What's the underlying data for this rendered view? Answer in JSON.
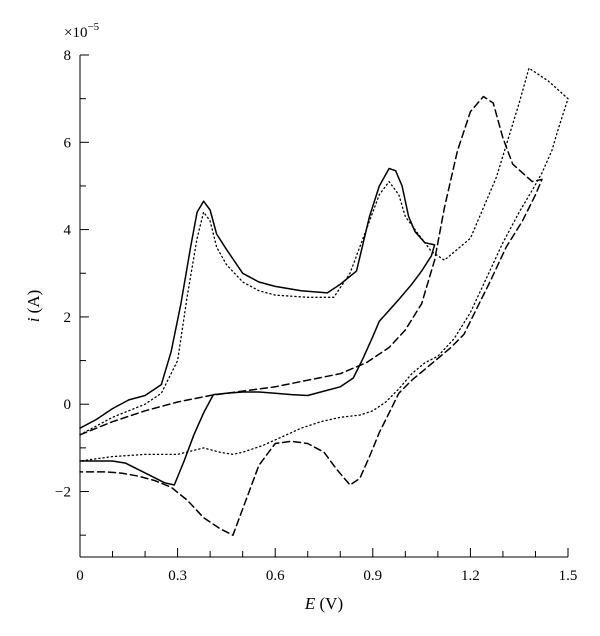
{
  "chart_data": {
    "type": "line",
    "title": "",
    "xlabel_var": "E",
    "xlabel_unit": " (V)",
    "ylabel_var": "i",
    "ylabel_unit": " (A)",
    "y_multiplier_base": "×10",
    "y_multiplier_exp": "−5",
    "xlim": [
      0,
      1.5
    ],
    "ylim": [
      -3.5,
      8
    ],
    "x_ticks": [
      0,
      0.3,
      0.6,
      0.9,
      1.2,
      1.5
    ],
    "x_tick_labels": [
      "0",
      "0.3",
      "0.6",
      "0.9",
      "1.2",
      "1.5"
    ],
    "y_ticks": [
      -2,
      0,
      2,
      4,
      6,
      8
    ],
    "y_tick_labels": [
      "−2",
      "0",
      "2",
      "4",
      "6",
      "8"
    ],
    "grid": false,
    "legend": "none",
    "series": [
      {
        "style": "solid",
        "x": [
          0.0,
          0.05,
          0.1,
          0.15,
          0.2,
          0.25,
          0.28,
          0.31,
          0.34,
          0.36,
          0.38,
          0.4,
          0.42,
          0.45,
          0.5,
          0.55,
          0.6,
          0.68,
          0.76,
          0.8,
          0.85,
          0.89,
          0.92,
          0.95,
          0.97,
          0.99,
          1.01,
          1.03,
          1.06,
          1.09,
          1.08,
          1.05,
          1.02,
          0.98,
          0.95,
          0.92,
          0.9,
          0.87,
          0.84,
          0.8,
          0.75,
          0.7,
          0.65,
          0.6,
          0.55,
          0.5,
          0.45,
          0.41,
          0.38,
          0.35,
          0.32,
          0.29,
          0.26,
          0.22,
          0.18,
          0.14,
          0.1,
          0.05,
          0.0
        ],
        "y": [
          -0.55,
          -0.35,
          -0.1,
          0.1,
          0.2,
          0.45,
          1.2,
          2.3,
          3.6,
          4.4,
          4.65,
          4.45,
          3.9,
          3.55,
          3.0,
          2.8,
          2.7,
          2.6,
          2.55,
          2.75,
          3.05,
          4.3,
          5.0,
          5.4,
          5.35,
          5.0,
          4.3,
          3.95,
          3.7,
          3.65,
          3.4,
          3.05,
          2.75,
          2.4,
          2.15,
          1.9,
          1.55,
          1.05,
          0.6,
          0.4,
          0.3,
          0.2,
          0.22,
          0.25,
          0.28,
          0.28,
          0.25,
          0.22,
          -0.2,
          -0.7,
          -1.3,
          -1.85,
          -1.8,
          -1.65,
          -1.5,
          -1.35,
          -1.3,
          -1.3,
          -1.3
        ]
      },
      {
        "style": "dotted",
        "x": [
          0.0,
          0.1,
          0.2,
          0.25,
          0.3,
          0.33,
          0.36,
          0.38,
          0.4,
          0.42,
          0.45,
          0.5,
          0.55,
          0.6,
          0.7,
          0.78,
          0.83,
          0.88,
          0.92,
          0.95,
          0.98,
          1.0,
          1.04,
          1.08,
          1.12,
          1.2,
          1.28,
          1.35,
          1.38,
          1.44,
          1.5,
          1.47,
          1.45,
          1.42,
          1.39,
          1.35,
          1.3,
          1.25,
          1.2,
          1.15,
          1.1,
          1.06,
          1.02,
          0.98,
          0.94,
          0.9,
          0.86,
          0.8,
          0.74,
          0.68,
          0.62,
          0.56,
          0.5,
          0.47,
          0.43,
          0.38,
          0.3,
          0.2,
          0.1,
          0.0
        ],
        "y": [
          -0.7,
          -0.3,
          0.0,
          0.25,
          1.0,
          2.5,
          3.8,
          4.4,
          4.2,
          3.6,
          3.2,
          2.8,
          2.6,
          2.5,
          2.45,
          2.45,
          3.0,
          4.0,
          4.8,
          5.1,
          4.8,
          4.3,
          3.9,
          3.5,
          3.3,
          3.8,
          5.2,
          6.9,
          7.7,
          7.4,
          7.0,
          6.3,
          5.8,
          5.3,
          4.9,
          4.4,
          3.7,
          2.9,
          2.1,
          1.5,
          1.1,
          0.95,
          0.7,
          0.35,
          0.05,
          -0.15,
          -0.25,
          -0.3,
          -0.4,
          -0.55,
          -0.75,
          -0.95,
          -1.1,
          -1.15,
          -1.1,
          -1.0,
          -1.15,
          -1.15,
          -1.2,
          -1.3
        ]
      },
      {
        "style": "dashed",
        "x": [
          0.0,
          0.1,
          0.2,
          0.3,
          0.4,
          0.5,
          0.6,
          0.7,
          0.8,
          0.88,
          0.95,
          1.0,
          1.05,
          1.09,
          1.12,
          1.16,
          1.2,
          1.24,
          1.27,
          1.3,
          1.33,
          1.36,
          1.39,
          1.42,
          1.4,
          1.36,
          1.31,
          1.26,
          1.22,
          1.18,
          1.14,
          1.1,
          1.06,
          1.02,
          0.98,
          0.95,
          0.92,
          0.89,
          0.86,
          0.83,
          0.79,
          0.75,
          0.7,
          0.65,
          0.6,
          0.55,
          0.51,
          0.47,
          0.43,
          0.38,
          0.33,
          0.28,
          0.23,
          0.18,
          0.13,
          0.08,
          0.0
        ],
        "y": [
          -0.7,
          -0.4,
          -0.15,
          0.05,
          0.2,
          0.3,
          0.4,
          0.55,
          0.7,
          0.95,
          1.3,
          1.7,
          2.3,
          3.3,
          4.5,
          5.8,
          6.7,
          7.05,
          6.9,
          6.1,
          5.5,
          5.3,
          5.1,
          5.15,
          4.8,
          4.2,
          3.6,
          2.8,
          2.2,
          1.6,
          1.3,
          1.05,
          0.8,
          0.55,
          0.25,
          -0.2,
          -0.65,
          -1.2,
          -1.7,
          -1.85,
          -1.5,
          -1.1,
          -0.9,
          -0.85,
          -0.9,
          -1.4,
          -2.2,
          -3.0,
          -2.85,
          -2.6,
          -2.2,
          -1.9,
          -1.75,
          -1.65,
          -1.58,
          -1.55,
          -1.55
        ]
      }
    ]
  }
}
